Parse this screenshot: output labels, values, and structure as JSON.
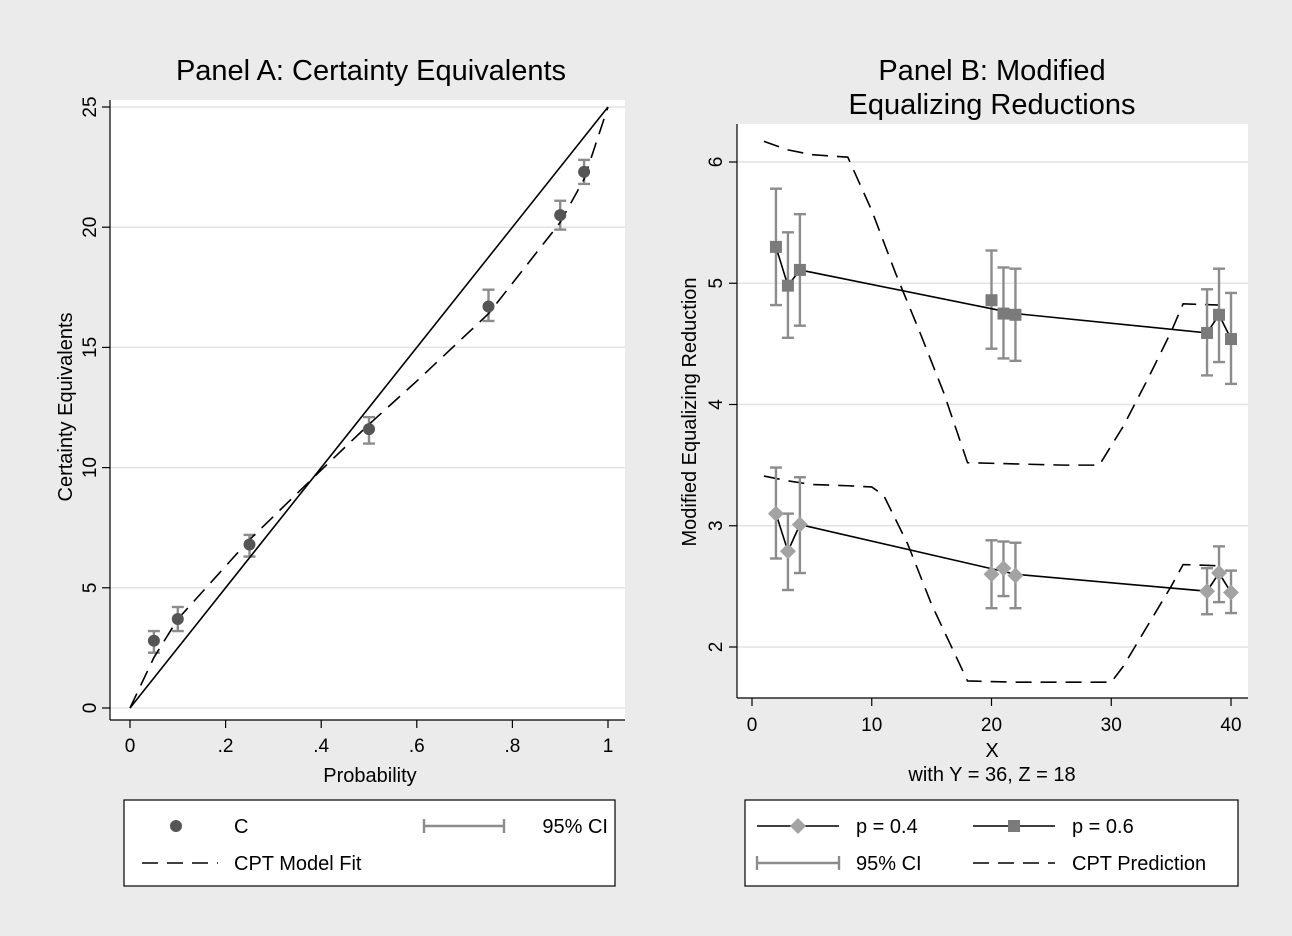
{
  "chart_data": [
    {
      "type": "scatter",
      "title": "Panel A: Certainty Equivalents",
      "xlabel": "Probability",
      "ylabel": "Certainty Equivalents",
      "xlim": [
        0,
        1
      ],
      "ylim": [
        0,
        25
      ],
      "xticks": [
        0,
        0.2,
        0.4,
        0.6,
        0.8,
        1
      ],
      "xtick_labels": [
        "0",
        ".2",
        ".4",
        ".6",
        ".8",
        "1"
      ],
      "yticks": [
        0,
        5,
        10,
        15,
        20,
        25
      ],
      "ytick_labels": [
        "0",
        "5",
        "10",
        "15",
        "20",
        "25"
      ],
      "grid": true,
      "legend": {
        "placement": "bottom",
        "entries": [
          "C",
          "95% CI",
          "CPT Model Fit"
        ]
      },
      "points": {
        "name": "C",
        "x": [
          0.05,
          0.1,
          0.25,
          0.5,
          0.75,
          0.9,
          0.95
        ],
        "y": [
          2.8,
          3.7,
          6.8,
          11.6,
          16.7,
          20.5,
          22.3
        ],
        "ci_low": [
          2.3,
          3.2,
          6.3,
          11.0,
          16.1,
          19.9,
          21.8
        ],
        "ci_high": [
          3.2,
          4.2,
          7.2,
          12.1,
          17.4,
          21.1,
          22.8
        ]
      },
      "reference_line": {
        "x": [
          0,
          1
        ],
        "y": [
          0,
          25
        ]
      },
      "model_fit": {
        "name": "CPT Model Fit",
        "x": [
          0,
          0.05,
          0.1,
          0.25,
          0.4,
          0.5,
          0.6,
          0.75,
          0.9,
          0.95,
          1
        ],
        "y": [
          0,
          2.1,
          3.7,
          7.0,
          9.9,
          11.8,
          13.6,
          16.4,
          20.2,
          22.0,
          25
        ]
      }
    },
    {
      "type": "line",
      "title": [
        "Panel B: Modified",
        "Equalizing Reductions"
      ],
      "xlabel": "X",
      "subtitle": "with Y = 36, Z = 18",
      "ylabel": "Modified Equalizing Reduction",
      "xlim": [
        -1,
        41
      ],
      "ylim": [
        1.6,
        6.3
      ],
      "xticks": [
        0,
        10,
        20,
        30,
        40
      ],
      "xtick_labels": [
        "0",
        "10",
        "20",
        "30",
        "40"
      ],
      "yticks": [
        2,
        3,
        4,
        5,
        6
      ],
      "ytick_labels": [
        "2",
        "3",
        "4",
        "5",
        "6"
      ],
      "grid": true,
      "legend": {
        "placement": "bottom",
        "entries": [
          "p = 0.4",
          "p = 0.6",
          "95% CI",
          "CPT Prediction"
        ]
      },
      "series": [
        {
          "name": "p = 0.4",
          "marker": "diamond",
          "x": [
            2,
            3,
            4,
            20,
            21,
            22,
            38,
            39,
            40
          ],
          "y": [
            3.1,
            2.79,
            3.01,
            2.6,
            2.65,
            2.59,
            2.46,
            2.61,
            2.45
          ],
          "ci_low": [
            2.73,
            2.47,
            2.61,
            2.32,
            2.42,
            2.32,
            2.27,
            2.37,
            2.28
          ],
          "ci_high": [
            3.48,
            3.1,
            3.4,
            2.88,
            2.87,
            2.86,
            2.65,
            2.83,
            2.63
          ],
          "fit_x": [
            2,
            3,
            4,
            22,
            38,
            39,
            40
          ],
          "fit_y": [
            3.1,
            2.79,
            3.01,
            2.6,
            2.46,
            2.61,
            2.45
          ]
        },
        {
          "name": "p = 0.6",
          "marker": "square",
          "x": [
            2,
            3,
            4,
            20,
            21,
            22,
            38,
            39,
            40
          ],
          "y": [
            5.3,
            4.98,
            5.11,
            4.86,
            4.75,
            4.74,
            4.59,
            4.74,
            4.54
          ],
          "ci_low": [
            4.82,
            4.55,
            4.65,
            4.46,
            4.38,
            4.36,
            4.24,
            4.35,
            4.17
          ],
          "ci_high": [
            5.78,
            5.42,
            5.57,
            5.27,
            5.13,
            5.12,
            4.95,
            5.12,
            4.92
          ],
          "fit_x": [
            2,
            3,
            4,
            22,
            38,
            39,
            40
          ],
          "fit_y": [
            5.3,
            4.98,
            5.11,
            4.75,
            4.59,
            4.74,
            4.54
          ]
        }
      ],
      "predictions": [
        {
          "name": "CPT Prediction",
          "for": "p = 0.6",
          "x": [
            1,
            3,
            5,
            8,
            10,
            12,
            14,
            16,
            18,
            22,
            26,
            29,
            31,
            33,
            35,
            36,
            39
          ],
          "y": [
            6.17,
            6.1,
            6.06,
            6.04,
            5.6,
            5.08,
            4.6,
            4.1,
            3.52,
            3.51,
            3.5,
            3.5,
            3.82,
            4.2,
            4.6,
            4.83,
            4.82
          ]
        },
        {
          "name": "CPT Prediction",
          "for": "p = 0.4",
          "x": [
            1,
            3,
            5,
            8,
            10,
            11,
            13,
            15,
            18,
            22,
            26,
            30,
            31,
            33,
            35,
            36,
            39
          ],
          "y": [
            3.41,
            3.37,
            3.34,
            3.33,
            3.32,
            3.25,
            2.85,
            2.35,
            1.72,
            1.71,
            1.71,
            1.71,
            1.84,
            2.17,
            2.5,
            2.68,
            2.67
          ]
        }
      ]
    }
  ]
}
